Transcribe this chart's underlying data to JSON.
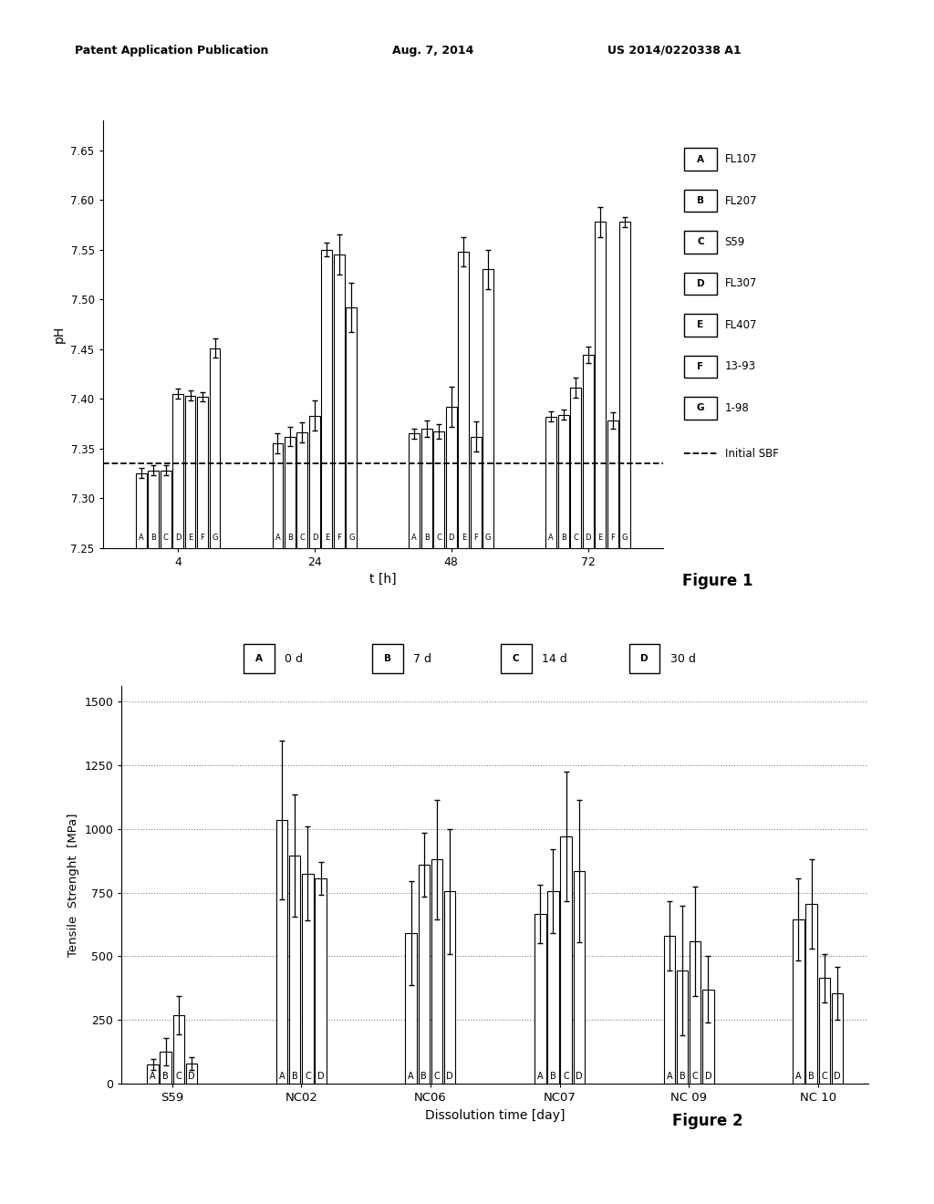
{
  "header": {
    "left": "Patent Application Publication",
    "center": "Aug. 7, 2014",
    "right": "US 2014/0220338 A1"
  },
  "fig1": {
    "xlabel": "t [h]",
    "ylabel": "pH",
    "yticks": [
      7.25,
      7.3,
      7.35,
      7.4,
      7.45,
      7.5,
      7.55,
      7.6,
      7.65
    ],
    "ylim": [
      7.25,
      7.68
    ],
    "initial_sbf": 7.335,
    "legend_labels": [
      "FL107",
      "FL207",
      "S59",
      "FL307",
      "FL407",
      "13-93",
      "1-98"
    ],
    "legend_keys": [
      "A",
      "B",
      "C",
      "D",
      "E",
      "F",
      "G"
    ],
    "groups": [
      "4",
      "24",
      "48",
      "72"
    ],
    "bar_values": {
      "4": [
        7.325,
        7.328,
        7.328,
        7.405,
        7.403,
        7.402,
        7.451
      ],
      "24": [
        7.355,
        7.362,
        7.366,
        7.383,
        7.55,
        7.545,
        7.492
      ],
      "48": [
        7.365,
        7.37,
        7.367,
        7.392,
        7.548,
        7.362,
        7.53
      ],
      "72": [
        7.382,
        7.384,
        7.411,
        7.444,
        7.578,
        7.378,
        7.578
      ]
    },
    "bar_errors": {
      "4": [
        0.005,
        0.005,
        0.005,
        0.005,
        0.005,
        0.005,
        0.01
      ],
      "24": [
        0.01,
        0.01,
        0.01,
        0.015,
        0.007,
        0.02,
        0.025
      ],
      "48": [
        0.005,
        0.008,
        0.007,
        0.02,
        0.015,
        0.015,
        0.02
      ],
      "72": [
        0.005,
        0.005,
        0.01,
        0.008,
        0.015,
        0.008,
        0.005
      ]
    },
    "fig_label": "Figure 1"
  },
  "fig2": {
    "xlabel": "Dissolution time [day]",
    "ylabel": "Tensile  Strenght  [MPa]",
    "yticks": [
      0,
      250,
      500,
      750,
      1000,
      1250,
      1500
    ],
    "ylim": [
      0,
      1560
    ],
    "xtick_labels": [
      "S59",
      "NC02",
      "NC06",
      "NC07",
      "NC 09",
      "NC 10"
    ],
    "legend_labels": [
      "0 d",
      "7 d",
      "14 d",
      "30 d"
    ],
    "legend_keys": [
      "A",
      "B",
      "C",
      "D"
    ],
    "bar_values": {
      "S59": [
        75,
        125,
        270,
        80
      ],
      "NC02": [
        1035,
        895,
        825,
        805
      ],
      "NC06": [
        590,
        860,
        880,
        755
      ],
      "NC07": [
        665,
        755,
        970,
        835
      ],
      "NC 09": [
        580,
        445,
        560,
        370
      ],
      "NC 10": [
        645,
        705,
        415,
        355
      ]
    },
    "bar_errors": {
      "S59": [
        20,
        55,
        75,
        25
      ],
      "NC02": [
        310,
        240,
        185,
        65
      ],
      "NC06": [
        205,
        125,
        235,
        245
      ],
      "NC07": [
        115,
        165,
        255,
        280
      ],
      "NC 09": [
        135,
        255,
        215,
        130
      ],
      "NC 10": [
        160,
        175,
        95,
        105
      ]
    },
    "fig_label": "Figure 2"
  }
}
